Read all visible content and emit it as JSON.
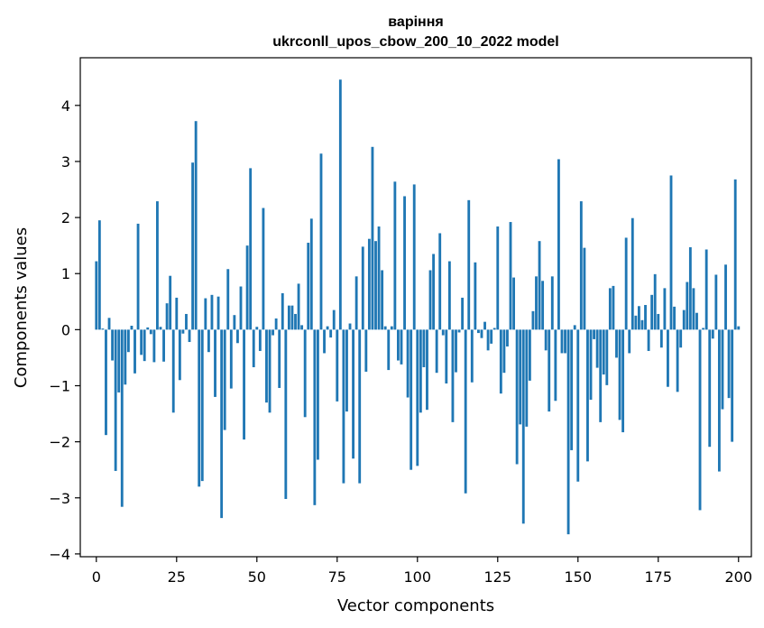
{
  "chart_data": {
    "type": "bar",
    "title_line1": "варіння",
    "title_line2": "ukrconll_upos_cbow_200_10_2022 model",
    "xlabel": "Vector components",
    "ylabel": "Components values",
    "xlim": [
      -5,
      204
    ],
    "ylim": [
      -4.05,
      4.85
    ],
    "xticks": [
      0,
      25,
      50,
      75,
      100,
      125,
      150,
      175,
      200
    ],
    "yticks": [
      -4,
      -3,
      -2,
      -1,
      0,
      1,
      2,
      3,
      4
    ],
    "bar_color": "#1f77b4",
    "grid": false,
    "legend": "none",
    "values": [
      1.22,
      1.95,
      0.02,
      -1.88,
      0.21,
      -0.55,
      -2.52,
      -1.12,
      -3.16,
      -0.98,
      -0.4,
      0.07,
      -0.78,
      1.89,
      -0.45,
      -0.56,
      0.04,
      -0.08,
      -0.58,
      2.29,
      0.05,
      -0.57,
      0.47,
      0.96,
      -1.48,
      0.57,
      -0.9,
      -0.07,
      0.28,
      -0.22,
      2.98,
      3.72,
      -2.8,
      -2.7,
      0.56,
      -0.4,
      0.62,
      -1.2,
      0.59,
      -3.36,
      -1.79,
      1.08,
      -1.05,
      0.26,
      -0.24,
      0.77,
      -1.96,
      1.5,
      2.88,
      -0.67,
      0.05,
      -0.38,
      2.17,
      -1.3,
      -1.48,
      -0.1,
      0.2,
      -1.04,
      0.65,
      -3.02,
      0.43,
      0.43,
      0.28,
      0.82,
      0.08,
      -1.56,
      1.55,
      1.98,
      -3.13,
      -2.32,
      3.14,
      -0.42,
      0.06,
      -0.14,
      0.35,
      -1.28,
      4.46,
      -2.74,
      -1.46,
      0.11,
      -2.3,
      0.95,
      -2.74,
      1.48,
      -0.75,
      1.62,
      3.26,
      1.58,
      1.84,
      1.06,
      0.06,
      -0.72,
      0.06,
      2.64,
      -0.55,
      -0.62,
      2.38,
      -1.21,
      -2.5,
      2.59,
      -2.43,
      -1.48,
      -0.67,
      -1.43,
      1.06,
      1.35,
      -0.77,
      1.72,
      -0.1,
      -0.96,
      1.22,
      -1.65,
      -0.76,
      -0.05,
      0.57,
      -2.92,
      2.31,
      -0.94,
      1.2,
      -0.06,
      -0.15,
      0.14,
      -0.37,
      -0.25,
      0.03,
      1.84,
      -1.14,
      -0.77,
      -0.3,
      1.92,
      0.93,
      -2.4,
      -1.69,
      -3.46,
      -1.73,
      -0.91,
      0.33,
      0.95,
      1.58,
      0.87,
      -0.37,
      -1.46,
      0.95,
      -1.27,
      3.04,
      -0.42,
      -0.42,
      -3.65,
      -2.15,
      0.08,
      -2.71,
      2.29,
      1.46,
      -2.35,
      -1.25,
      -0.17,
      -0.68,
      -1.65,
      -0.8,
      -0.99,
      0.74,
      0.78,
      -0.5,
      -1.61,
      -1.83,
      1.64,
      -0.42,
      1.99,
      0.25,
      0.42,
      0.17,
      0.44,
      -0.38,
      0.62,
      0.99,
      0.28,
      -0.32,
      0.74,
      -1.02,
      2.75,
      0.41,
      -1.11,
      -0.32,
      0.35,
      0.85,
      1.47,
      0.74,
      0.3,
      -3.22,
      0.03,
      1.43,
      -2.09,
      -0.16,
      0.98,
      -2.53,
      -1.42,
      1.16,
      -1.22,
      -2.0,
      2.68,
      0.06
    ]
  }
}
